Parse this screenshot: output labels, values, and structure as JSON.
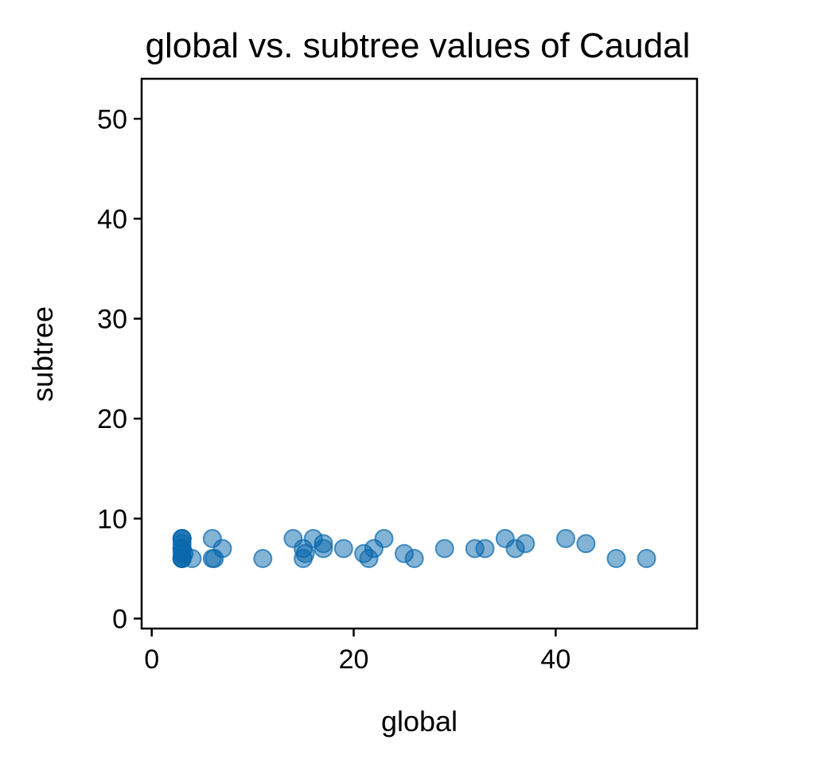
{
  "chart_data": {
    "type": "scatter",
    "title": "global vs. subtree values of Caudal",
    "xlabel": "global",
    "ylabel": "subtree",
    "xlim": [
      -1,
      54
    ],
    "ylim": [
      -1,
      54
    ],
    "xticks": [
      0,
      20,
      40
    ],
    "yticks": [
      0,
      10,
      20,
      30,
      40,
      50
    ],
    "grid": false,
    "legend": "none",
    "marker_color": "#0868ac",
    "marker_alpha": 0.5,
    "points": [
      {
        "x": 3,
        "y": 6
      },
      {
        "x": 3,
        "y": 6
      },
      {
        "x": 3,
        "y": 6
      },
      {
        "x": 3,
        "y": 6
      },
      {
        "x": 3,
        "y": 6.5
      },
      {
        "x": 3,
        "y": 7
      },
      {
        "x": 3,
        "y": 7
      },
      {
        "x": 3,
        "y": 7.5
      },
      {
        "x": 3,
        "y": 8
      },
      {
        "x": 3,
        "y": 8
      },
      {
        "x": 3,
        "y": 8
      },
      {
        "x": 3.2,
        "y": 6.5
      },
      {
        "x": 4,
        "y": 6
      },
      {
        "x": 6,
        "y": 8
      },
      {
        "x": 6,
        "y": 6
      },
      {
        "x": 6.2,
        "y": 6
      },
      {
        "x": 7,
        "y": 7
      },
      {
        "x": 11,
        "y": 6
      },
      {
        "x": 14,
        "y": 8
      },
      {
        "x": 15,
        "y": 7
      },
      {
        "x": 15,
        "y": 6
      },
      {
        "x": 15.2,
        "y": 6.5
      },
      {
        "x": 16,
        "y": 8
      },
      {
        "x": 17,
        "y": 7
      },
      {
        "x": 17,
        "y": 7.5
      },
      {
        "x": 19,
        "y": 7
      },
      {
        "x": 21,
        "y": 6.5
      },
      {
        "x": 21.5,
        "y": 6
      },
      {
        "x": 22,
        "y": 7
      },
      {
        "x": 23,
        "y": 8
      },
      {
        "x": 25,
        "y": 6.5
      },
      {
        "x": 26,
        "y": 6
      },
      {
        "x": 29,
        "y": 7
      },
      {
        "x": 32,
        "y": 7
      },
      {
        "x": 33,
        "y": 7
      },
      {
        "x": 35,
        "y": 8
      },
      {
        "x": 36,
        "y": 7
      },
      {
        "x": 37,
        "y": 7.5
      },
      {
        "x": 41,
        "y": 8
      },
      {
        "x": 43,
        "y": 7.5
      },
      {
        "x": 46,
        "y": 6
      },
      {
        "x": 49,
        "y": 6
      }
    ]
  }
}
